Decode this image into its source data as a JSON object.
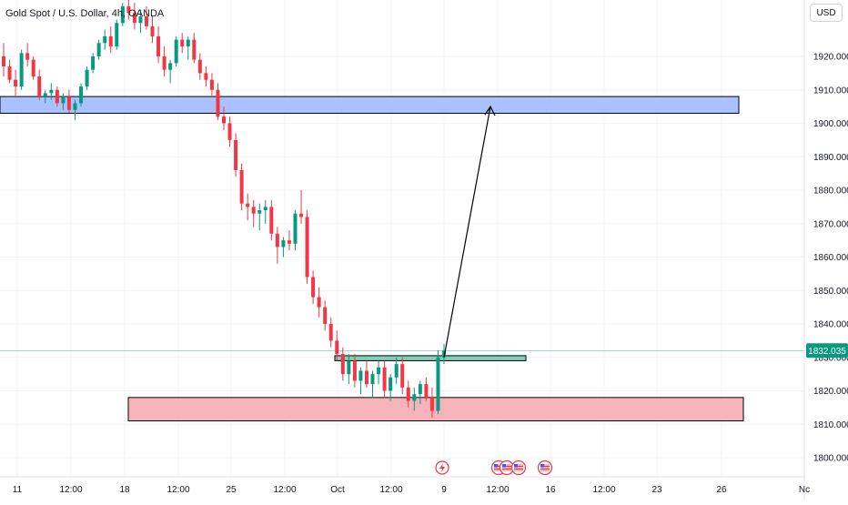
{
  "header": {
    "title": "Gold Spot / U.S. Dollar, 4h, OANDA",
    "currency": "USD"
  },
  "price_badge": "1832.035",
  "colors": {
    "up": "#089981",
    "down": "#f23645",
    "grid": "#f0f3fa",
    "upper_zone": "#a9c2ff",
    "lower_zone": "#f7b3ba",
    "mid_zone": "#7fd0b8",
    "badge": "#089981"
  },
  "chart_data": {
    "type": "candlestick",
    "title": "Gold Spot / U.S. Dollar, 4h, OANDA",
    "ylim": [
      1795,
      1943
    ],
    "y_ticks": [
      "1920.000",
      "1910.000",
      "1900.000",
      "1890.000",
      "1880.000",
      "1870.000",
      "1860.000",
      "1850.000",
      "1840.000",
      "1830.000",
      "1820.000",
      "1810.000",
      "1800.000"
    ],
    "y_tick_values": [
      1920,
      1910,
      1900,
      1890,
      1880,
      1870,
      1860,
      1850,
      1840,
      1830,
      1820,
      1810,
      1800
    ],
    "x_ticks": [
      "11",
      "12:00",
      "18",
      "12:00",
      "25",
      "12:00",
      "Oct",
      "12:00",
      "9",
      "12:00",
      "16",
      "12:00",
      "23",
      "26",
      "Nc"
    ],
    "current_price": 1832.035,
    "zones": [
      {
        "kind": "upper",
        "y_top": 1908,
        "y_bottom": 1903
      },
      {
        "kind": "middle",
        "y_top": 1830.5,
        "y_bottom": 1829
      },
      {
        "kind": "lower",
        "y_top": 1818,
        "y_bottom": 1811
      }
    ],
    "projection": {
      "from": 1830,
      "to": 1905
    },
    "events": [
      "lightning",
      "us",
      "us",
      "us",
      "us"
    ],
    "candles": [
      [
        1920,
        1924,
        1914,
        1917
      ],
      [
        1917,
        1919,
        1912,
        1913
      ],
      [
        1913,
        1916,
        1908,
        1911
      ],
      [
        1911,
        1922,
        1910,
        1921
      ],
      [
        1921,
        1924,
        1917,
        1919
      ],
      [
        1919,
        1920,
        1913,
        1914
      ],
      [
        1914,
        1916,
        1907,
        1908
      ],
      [
        1908,
        1910,
        1906,
        1909
      ],
      [
        1909,
        1912,
        1907,
        1910
      ],
      [
        1910,
        1911,
        1905,
        1906
      ],
      [
        1906,
        1909,
        1904,
        1908
      ],
      [
        1908,
        1910,
        1903,
        1904
      ],
      [
        1904,
        1907,
        1901,
        1906
      ],
      [
        1906,
        1912,
        1905,
        1911
      ],
      [
        1911,
        1917,
        1910,
        1916
      ],
      [
        1916,
        1921,
        1915,
        1920
      ],
      [
        1920,
        1925,
        1919,
        1924
      ],
      [
        1924,
        1928,
        1922,
        1926
      ],
      [
        1926,
        1929,
        1921,
        1923
      ],
      [
        1923,
        1931,
        1922,
        1930
      ],
      [
        1930,
        1936,
        1929,
        1935
      ],
      [
        1935,
        1941,
        1931,
        1933
      ],
      [
        1933,
        1936,
        1928,
        1930
      ],
      [
        1930,
        1934,
        1927,
        1932
      ],
      [
        1932,
        1935,
        1928,
        1929
      ],
      [
        1929,
        1932,
        1924,
        1926
      ],
      [
        1926,
        1929,
        1918,
        1920
      ],
      [
        1920,
        1923,
        1914,
        1916
      ],
      [
        1916,
        1919,
        1912,
        1918
      ],
      [
        1918,
        1926,
        1917,
        1925
      ],
      [
        1925,
        1927,
        1921,
        1923
      ],
      [
        1923,
        1926,
        1919,
        1925
      ],
      [
        1925,
        1927,
        1918,
        1919
      ],
      [
        1919,
        1921,
        1913,
        1915
      ],
      [
        1915,
        1917,
        1911,
        1913
      ],
      [
        1913,
        1915,
        1908,
        1910
      ],
      [
        1910,
        1912,
        1901,
        1902
      ],
      [
        1902,
        1905,
        1898,
        1900
      ],
      [
        1900,
        1902,
        1893,
        1895
      ],
      [
        1895,
        1897,
        1884,
        1886
      ],
      [
        1886,
        1888,
        1874,
        1876
      ],
      [
        1876,
        1879,
        1871,
        1875
      ],
      [
        1875,
        1877,
        1869,
        1873
      ],
      [
        1873,
        1876,
        1868,
        1874
      ],
      [
        1874,
        1877,
        1870,
        1875
      ],
      [
        1875,
        1877,
        1865,
        1867
      ],
      [
        1867,
        1869,
        1858,
        1863
      ],
      [
        1863,
        1866,
        1860,
        1865
      ],
      [
        1865,
        1868,
        1862,
        1864
      ],
      [
        1864,
        1874,
        1862,
        1873
      ],
      [
        1873,
        1880,
        1870,
        1872
      ],
      [
        1872,
        1874,
        1852,
        1854
      ],
      [
        1854,
        1856,
        1846,
        1848
      ],
      [
        1848,
        1851,
        1842,
        1845
      ],
      [
        1845,
        1847,
        1838,
        1840
      ],
      [
        1840,
        1842,
        1833,
        1835
      ],
      [
        1835,
        1838,
        1829,
        1831
      ],
      [
        1831,
        1833,
        1823,
        1825
      ],
      [
        1825,
        1831,
        1822,
        1829
      ],
      [
        1829,
        1831,
        1821,
        1823
      ],
      [
        1823,
        1827,
        1819,
        1826
      ],
      [
        1826,
        1829,
        1821,
        1822
      ],
      [
        1822,
        1826,
        1818,
        1825
      ],
      [
        1825,
        1829,
        1822,
        1827
      ],
      [
        1827,
        1829,
        1818,
        1820
      ],
      [
        1820,
        1825,
        1817,
        1824
      ],
      [
        1824,
        1830,
        1822,
        1828
      ],
      [
        1828,
        1830,
        1819,
        1821
      ],
      [
        1821,
        1823,
        1815,
        1817
      ],
      [
        1817,
        1821,
        1814,
        1819
      ],
      [
        1819,
        1823,
        1816,
        1822
      ],
      [
        1822,
        1824,
        1817,
        1818
      ],
      [
        1818,
        1821,
        1812,
        1814
      ],
      [
        1814,
        1832,
        1813,
        1830
      ],
      [
        1830,
        1834,
        1828,
        1832
      ]
    ]
  }
}
